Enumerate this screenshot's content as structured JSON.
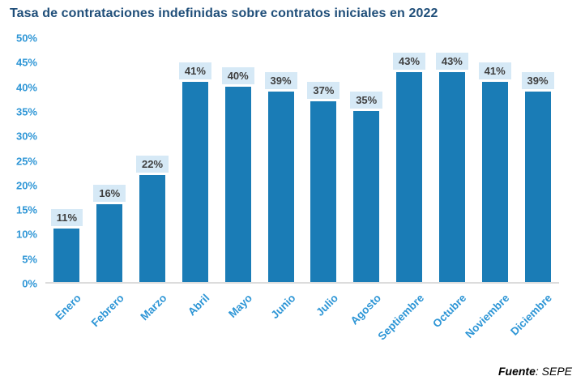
{
  "title": "Tasa de contrataciones indefinidas sobre contratos iniciales en 2022",
  "source": {
    "bold": "Fuente",
    "rest": ": SEPE"
  },
  "chart_data": {
    "type": "bar",
    "title": "Tasa de contrataciones indefinidas sobre contratos iniciales en 2022",
    "categories": [
      "Enero",
      "Febrero",
      "Marzo",
      "Abril",
      "Mayo",
      "Junio",
      "Julio",
      "Agosto",
      "Septiembre",
      "Octubre",
      "Noviembre",
      "Diciembre"
    ],
    "values": [
      11,
      16,
      22,
      41,
      40,
      39,
      37,
      35,
      43,
      43,
      41,
      39
    ],
    "unit": "%",
    "xlabel": "",
    "ylabel": "",
    "ylim": [
      0,
      50
    ],
    "ytick_labels": [
      "0%",
      "5%",
      "10%",
      "15%",
      "20%",
      "25%",
      "30%",
      "35%",
      "40%",
      "45%",
      "50%"
    ],
    "grid": false,
    "legend": false,
    "data_labels": true,
    "colors": {
      "bar": "#1a7cb6",
      "data_label_bg": "#d6e9f6",
      "data_label_text": "#3f3f3f",
      "axis_labels": "#2e96d6",
      "title": "#1f4e79",
      "baseline": "#dcdcdc"
    }
  }
}
